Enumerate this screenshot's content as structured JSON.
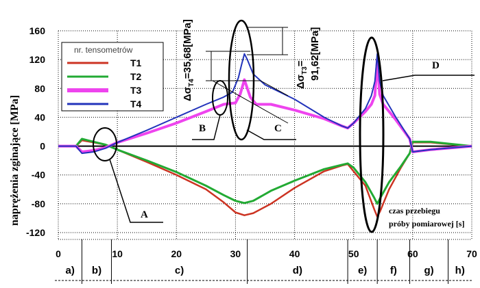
{
  "chart_data": {
    "type": "line",
    "ylabel": "naprężenia zginające [MPa]",
    "xlim": [
      0,
      70
    ],
    "ylim": [
      -120,
      160
    ],
    "x_ticks": [
      "0",
      "10",
      "20",
      "30",
      "40",
      "50",
      "60",
      "70"
    ],
    "y_ticks": [
      "160",
      "120",
      "80",
      "40",
      "0",
      "-40",
      "-80",
      "-120"
    ],
    "grid": true,
    "legend": {
      "title": "nr. tensometrów",
      "placement": "top-left",
      "entries": [
        "T1",
        "T2",
        "T3",
        "T4"
      ]
    },
    "series": [
      {
        "name": "T1",
        "color": "#cc3322",
        "x": [
          0,
          3,
          4,
          6,
          8,
          10,
          15,
          20,
          25,
          28,
          30,
          31.5,
          33,
          36,
          40,
          45,
          48,
          49,
          50,
          52,
          53.5,
          54,
          54.5,
          56,
          58,
          59.5,
          60,
          63,
          70
        ],
        "y": [
          0,
          0,
          8,
          5,
          2,
          -5,
          -22,
          -40,
          -60,
          -78,
          -92,
          -96,
          -93,
          -80,
          -58,
          -35,
          -27,
          -25,
          -35,
          -55,
          -88,
          -98,
          -90,
          -60,
          -30,
          -10,
          5,
          5,
          0
        ]
      },
      {
        "name": "T2",
        "color": "#22aa33",
        "x": [
          0,
          3,
          4,
          6,
          8,
          10,
          15,
          20,
          25,
          28,
          30,
          31.5,
          33,
          36,
          40,
          45,
          48,
          49,
          50,
          52,
          53.5,
          54,
          54.5,
          56,
          58,
          59.5,
          60,
          63,
          70
        ],
        "y": [
          0,
          0,
          10,
          6,
          2,
          -5,
          -20,
          -36,
          -55,
          -68,
          -76,
          -79,
          -76,
          -62,
          -48,
          -32,
          -26,
          -24,
          -30,
          -50,
          -72,
          -80,
          -72,
          -50,
          -28,
          -10,
          6,
          6,
          0
        ]
      },
      {
        "name": "T3",
        "color": "#ee44ee",
        "x": [
          0,
          3,
          4,
          6,
          8,
          10,
          15,
          20,
          25,
          28,
          30,
          30.8,
          31.5,
          32.5,
          33.5,
          36,
          40,
          45,
          48,
          49,
          50,
          52,
          53,
          53.6,
          54,
          54.4,
          55,
          57,
          59.5,
          60,
          63,
          70
        ],
        "y": [
          0,
          0,
          -8,
          -6,
          -2,
          5,
          18,
          32,
          48,
          58,
          60,
          72,
          92,
          68,
          58,
          58,
          50,
          38,
          28,
          25,
          32,
          48,
          58,
          70,
          120,
          72,
          58,
          38,
          10,
          -8,
          -5,
          0
        ]
      },
      {
        "name": "T4",
        "color": "#2233bb",
        "x": [
          0,
          3,
          4,
          6,
          8,
          10,
          15,
          20,
          25,
          28,
          29.5,
          30.5,
          31,
          31.5,
          32,
          33,
          35,
          40,
          45,
          48,
          49,
          50,
          52,
          53,
          53.6,
          54,
          54.4,
          55,
          57,
          59.5,
          60,
          63,
          70
        ],
        "y": [
          0,
          0,
          -10,
          -8,
          -3,
          5,
          22,
          40,
          58,
          68,
          75,
          95,
          112,
          128,
          120,
          100,
          85,
          65,
          40,
          28,
          25,
          32,
          52,
          70,
          90,
          128,
          90,
          70,
          42,
          10,
          -8,
          -5,
          0
        ]
      }
    ],
    "phases": [
      "a)",
      "b)",
      "c)",
      "d)",
      "e)",
      "f)",
      "g)",
      "h)"
    ],
    "phase_boundaries": [
      4,
      9,
      32,
      49,
      54,
      59.5,
      66
    ],
    "annotations": {
      "A": "A",
      "B": "B",
      "C": "C",
      "D": "D",
      "delta_T4_main": "Δσ",
      "delta_T4_sub": "T4",
      "delta_T4_value": "=35,68[MPa]",
      "delta_T3_main": "Δσ",
      "delta_T3_sub": "T3",
      "delta_T3_value": "91,62[MPa]",
      "delta_T3_eq": "=",
      "note_line1": "czas przebiegu",
      "note_line2": "próby pomiarowej [s]"
    }
  }
}
